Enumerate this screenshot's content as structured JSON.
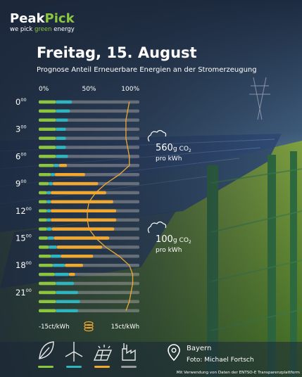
{
  "chart_data": {
    "type": "stacked-hbar",
    "logo": {
      "brand_a": "Peak",
      "brand_b": "Pick",
      "tagline_a": "we pick",
      "tagline_b": "green",
      "tagline_c": "energy"
    },
    "title": "Freitag, 15. August",
    "subtitle": "Prognose Anteil Erneuerbare Energien an der Stromerzeugung",
    "categories": [
      "0",
      null,
      null,
      "3",
      null,
      null,
      "6",
      null,
      null,
      "9",
      null,
      null,
      "12",
      null,
      null,
      "15",
      null,
      null,
      "18",
      null,
      null,
      "21",
      null,
      null
    ],
    "minute_label": "00",
    "xlim": [
      0,
      100
    ],
    "xticks": [
      {
        "value": 0,
        "label": "0%"
      },
      {
        "value": 50,
        "label": "50%"
      },
      {
        "value": 100,
        "label": "100%"
      }
    ],
    "series": [
      {
        "color": "#8cc63f",
        "values": [
          17,
          17,
          17,
          17,
          17,
          17,
          17,
          15,
          12,
          10,
          8,
          8,
          8,
          8,
          8,
          9,
          10,
          12,
          14,
          16,
          17,
          17,
          17,
          17
        ]
      },
      {
        "color": "#2fb5c0",
        "values": [
          16,
          14,
          12,
          10,
          10,
          10,
          12,
          5,
          4,
          4,
          4,
          4,
          4,
          4,
          5,
          6,
          8,
          10,
          12,
          14,
          18,
          22,
          24,
          22
        ]
      },
      {
        "color": "#f0a830",
        "values": [
          0,
          0,
          0,
          0,
          0,
          0,
          0,
          8,
          30,
          45,
          55,
          62,
          65,
          65,
          62,
          55,
          45,
          32,
          18,
          6,
          0,
          0,
          0,
          0
        ]
      }
    ],
    "price": {
      "color": "#f0a830",
      "values": [
        12,
        11.5,
        11,
        11,
        11,
        11.5,
        12,
        12,
        9,
        5,
        2,
        0,
        -0.5,
        -0.5,
        0,
        2,
        5,
        9,
        12,
        13,
        13,
        12.5,
        12,
        11
      ],
      "lim": [
        -15,
        15
      ],
      "ticks": [
        {
          "value": -15,
          "label": "-15ct/kWh"
        },
        {
          "value": 15,
          "label": "15ct/kWh"
        }
      ]
    },
    "annotations": [
      {
        "value": 560,
        "unit": "g",
        "gas": "CO",
        "sub": "2",
        "per": "pro kWh"
      },
      {
        "value": 100,
        "unit": "g",
        "gas": "CO",
        "sub": "2",
        "per": "pro kWh"
      }
    ],
    "location": "Bayern",
    "photo_credit": "Foto: Michael Fortsch",
    "data_credit": "Mit Verwendung von Daten der ENTSO-E Transparenzplattform"
  }
}
